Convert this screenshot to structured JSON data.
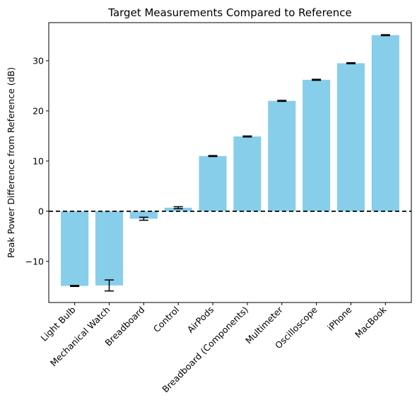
{
  "chart_data": {
    "type": "bar",
    "title": "Target Measurements Compared to Reference",
    "xlabel": "",
    "ylabel": "Peak Power Difference from Reference (dB)",
    "categories": [
      "Light Bulb",
      "Mechanical Watch",
      "Breadboard",
      "Control",
      "AirPods",
      "Breadboard (Components)",
      "Multimeter",
      "Oscilloscope",
      "iPhone",
      "MacBook"
    ],
    "values": [
      -14.9,
      -14.8,
      -1.5,
      0.7,
      11.0,
      14.9,
      22.0,
      26.2,
      29.5,
      35.1
    ],
    "error": [
      0.1,
      1.1,
      0.3,
      0.2,
      0.1,
      0.1,
      0.1,
      0.1,
      0.1,
      0.1
    ],
    "ylim": [
      -18.2,
      37.6
    ],
    "yticks": [
      -10,
      0,
      10,
      20,
      30
    ],
    "ytick_labels": [
      "−10",
      "0",
      "10",
      "20",
      "30"
    ],
    "reference_line": 0,
    "bar_color": "#87ceeb",
    "grid": false
  }
}
